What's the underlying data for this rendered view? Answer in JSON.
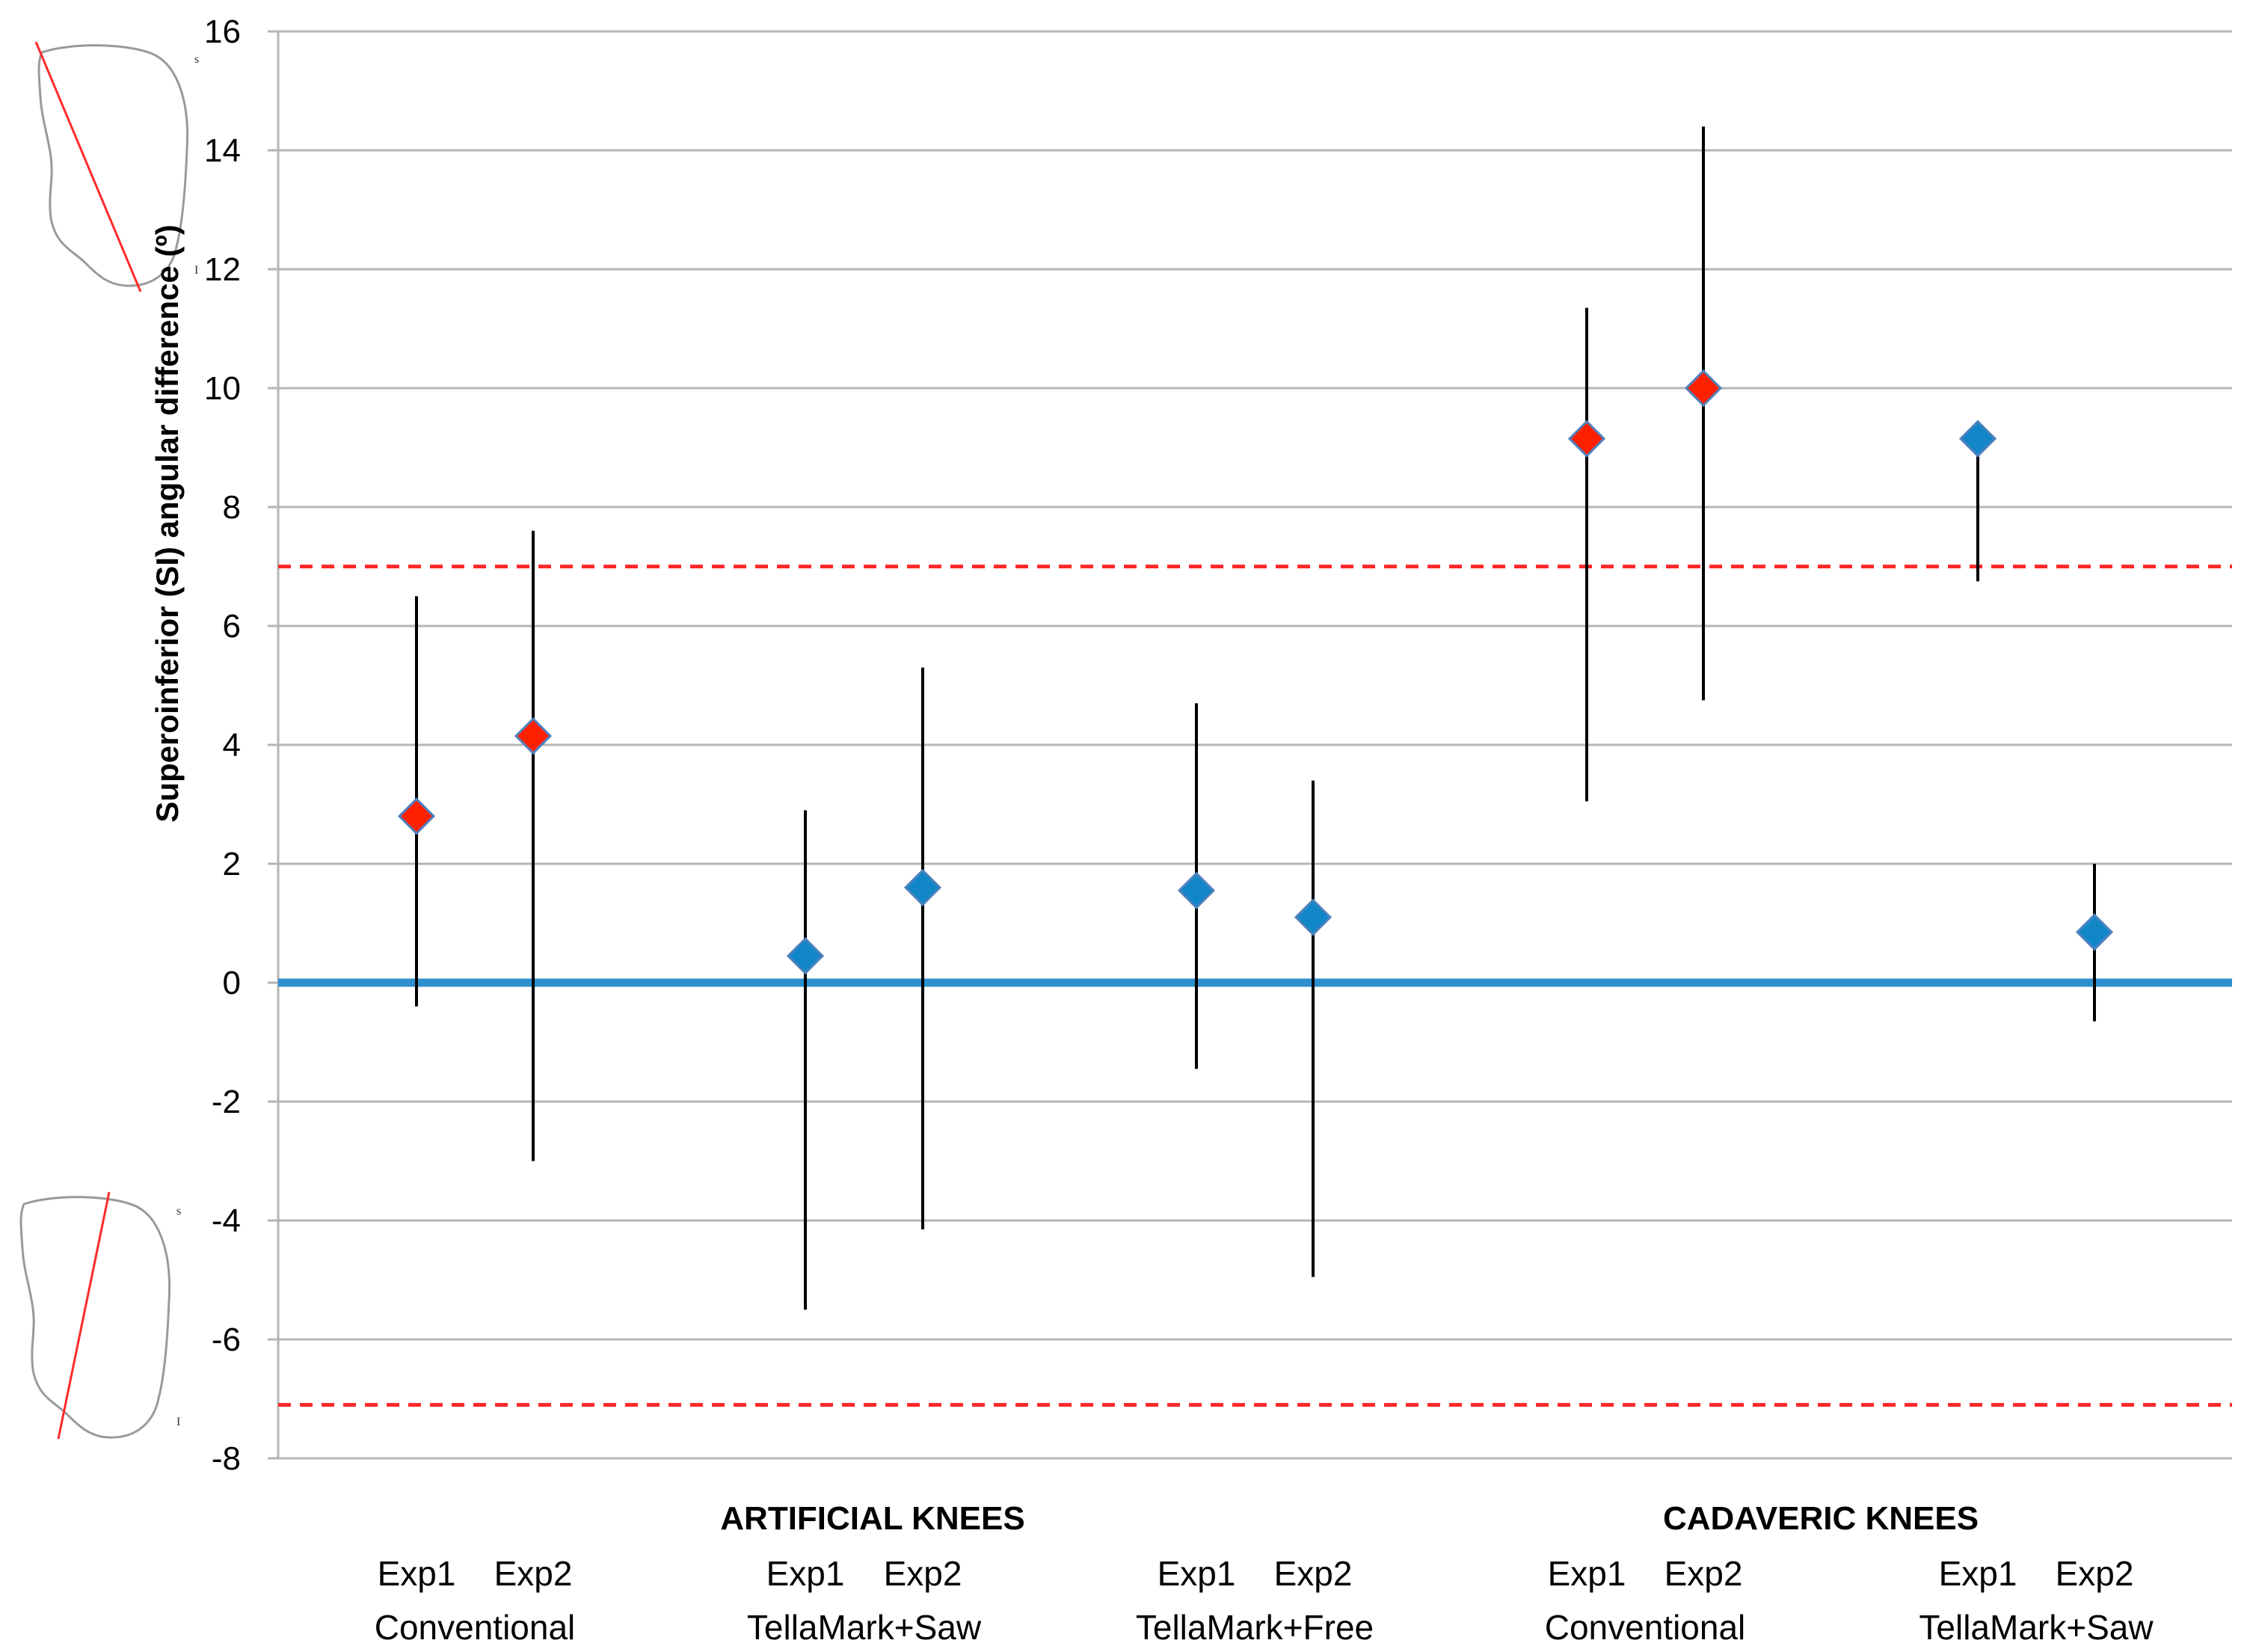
{
  "chart_data": {
    "type": "scatter",
    "title": "",
    "ylabel": "Superoinferior (SI) angular difference (º)",
    "xlabel": "",
    "ylim": [
      -8,
      16
    ],
    "ytick_step": 2,
    "grid": true,
    "colors": {
      "conventional": "#ff2000",
      "tellamark": "#1287c8",
      "baseline": "#2e8fcf",
      "threshold": "#ff2a2a",
      "grid": "#b5b5b5",
      "error_bar": "#000000",
      "marker_edge": "#4f81bd"
    },
    "zero_line": 0,
    "threshold_lines": [
      7,
      -7.1
    ],
    "groups": [
      {
        "label": "ARTIFICIAL KNEES"
      },
      {
        "label": "CADAVERIC KNEES"
      }
    ],
    "methods": [
      {
        "label": "Conventional"
      },
      {
        "label": "TellaMark+Saw"
      },
      {
        "label": "TellaMark+Free"
      },
      {
        "label": "Conventional"
      },
      {
        "label": "TellaMark+Saw"
      }
    ],
    "points": [
      {
        "group": "ARTIFICIAL KNEES",
        "method": "Conventional",
        "exp": "Exp1",
        "value": 2.8,
        "low": -0.4,
        "high": 6.5,
        "color": "conventional"
      },
      {
        "group": "ARTIFICIAL KNEES",
        "method": "Conventional",
        "exp": "Exp2",
        "value": 4.15,
        "low": -3.0,
        "high": 7.6,
        "color": "conventional"
      },
      {
        "group": "ARTIFICIAL KNEES",
        "method": "TellaMark+Saw",
        "exp": "Exp1",
        "value": 0.45,
        "low": -5.5,
        "high": 2.9,
        "color": "tellamark"
      },
      {
        "group": "ARTIFICIAL KNEES",
        "method": "TellaMark+Saw",
        "exp": "Exp2",
        "value": 1.6,
        "low": -4.15,
        "high": 5.3,
        "color": "tellamark"
      },
      {
        "group": "ARTIFICIAL KNEES",
        "method": "TellaMark+Free",
        "exp": "Exp1",
        "value": 1.55,
        "low": -1.45,
        "high": 4.7,
        "color": "tellamark"
      },
      {
        "group": "ARTIFICIAL KNEES",
        "method": "TellaMark+Free",
        "exp": "Exp2",
        "value": 1.1,
        "low": -4.95,
        "high": 3.4,
        "color": "tellamark"
      },
      {
        "group": "CADAVERIC KNEES",
        "method": "Conventional",
        "exp": "Exp1",
        "value": 9.15,
        "low": 3.05,
        "high": 11.35,
        "color": "conventional"
      },
      {
        "group": "CADAVERIC KNEES",
        "method": "Conventional",
        "exp": "Exp2",
        "value": 10.0,
        "low": 4.75,
        "high": 14.4,
        "color": "conventional"
      },
      {
        "group": "CADAVERIC KNEES",
        "method": "TellaMark+Saw",
        "exp": "Exp1",
        "value": 9.15,
        "low": 6.75,
        "high": 9.15,
        "color": "tellamark"
      },
      {
        "group": "CADAVERIC KNEES",
        "method": "TellaMark+Saw",
        "exp": "Exp2",
        "value": 0.85,
        "low": -0.65,
        "high": 2.0,
        "color": "tellamark"
      }
    ],
    "icons": [
      {
        "name": "patella-tilt-top-icon",
        "letter_top": "s",
        "letter_bottom": "I"
      },
      {
        "name": "patella-tilt-bottom-icon",
        "letter_top": "s",
        "letter_bottom": "I"
      }
    ]
  }
}
